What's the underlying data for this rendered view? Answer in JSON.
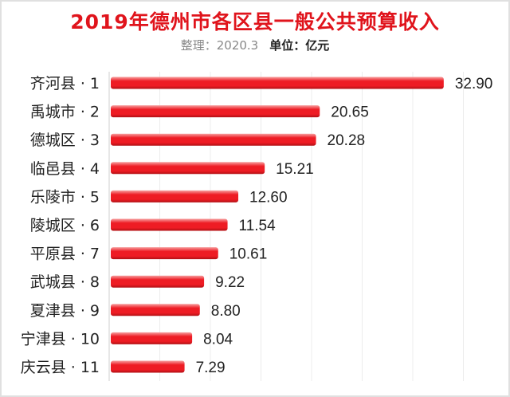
{
  "chart_data": {
    "type": "bar",
    "orientation": "horizontal",
    "title": "2019年德州市各区县一般公共预算收入",
    "subtitle_left": "整理：2020.3",
    "subtitle_right": "单位：亿元",
    "categories": [
      "齐河县 · 1",
      "禹城市 · 2",
      "德城区 · 3",
      "临邑县 · 4",
      "乐陵市 · 5",
      "陵城区 · 6",
      "平原县 · 7",
      "武城县 · 8",
      "夏津县 · 9",
      "宁津县 · 10",
      "庆云县 · 11"
    ],
    "values": [
      32.9,
      20.65,
      20.28,
      15.21,
      12.6,
      11.54,
      10.61,
      9.22,
      8.8,
      8.04,
      7.29
    ],
    "value_labels": [
      "32.90",
      "20.65",
      "20.28",
      "15.21",
      "12.60",
      "11.54",
      "10.61",
      "9.22",
      "8.80",
      "8.04",
      "7.29"
    ],
    "xlim": [
      0,
      35
    ],
    "grid": true,
    "bar_color": "#ee1c24",
    "xlabel": "",
    "ylabel": ""
  }
}
